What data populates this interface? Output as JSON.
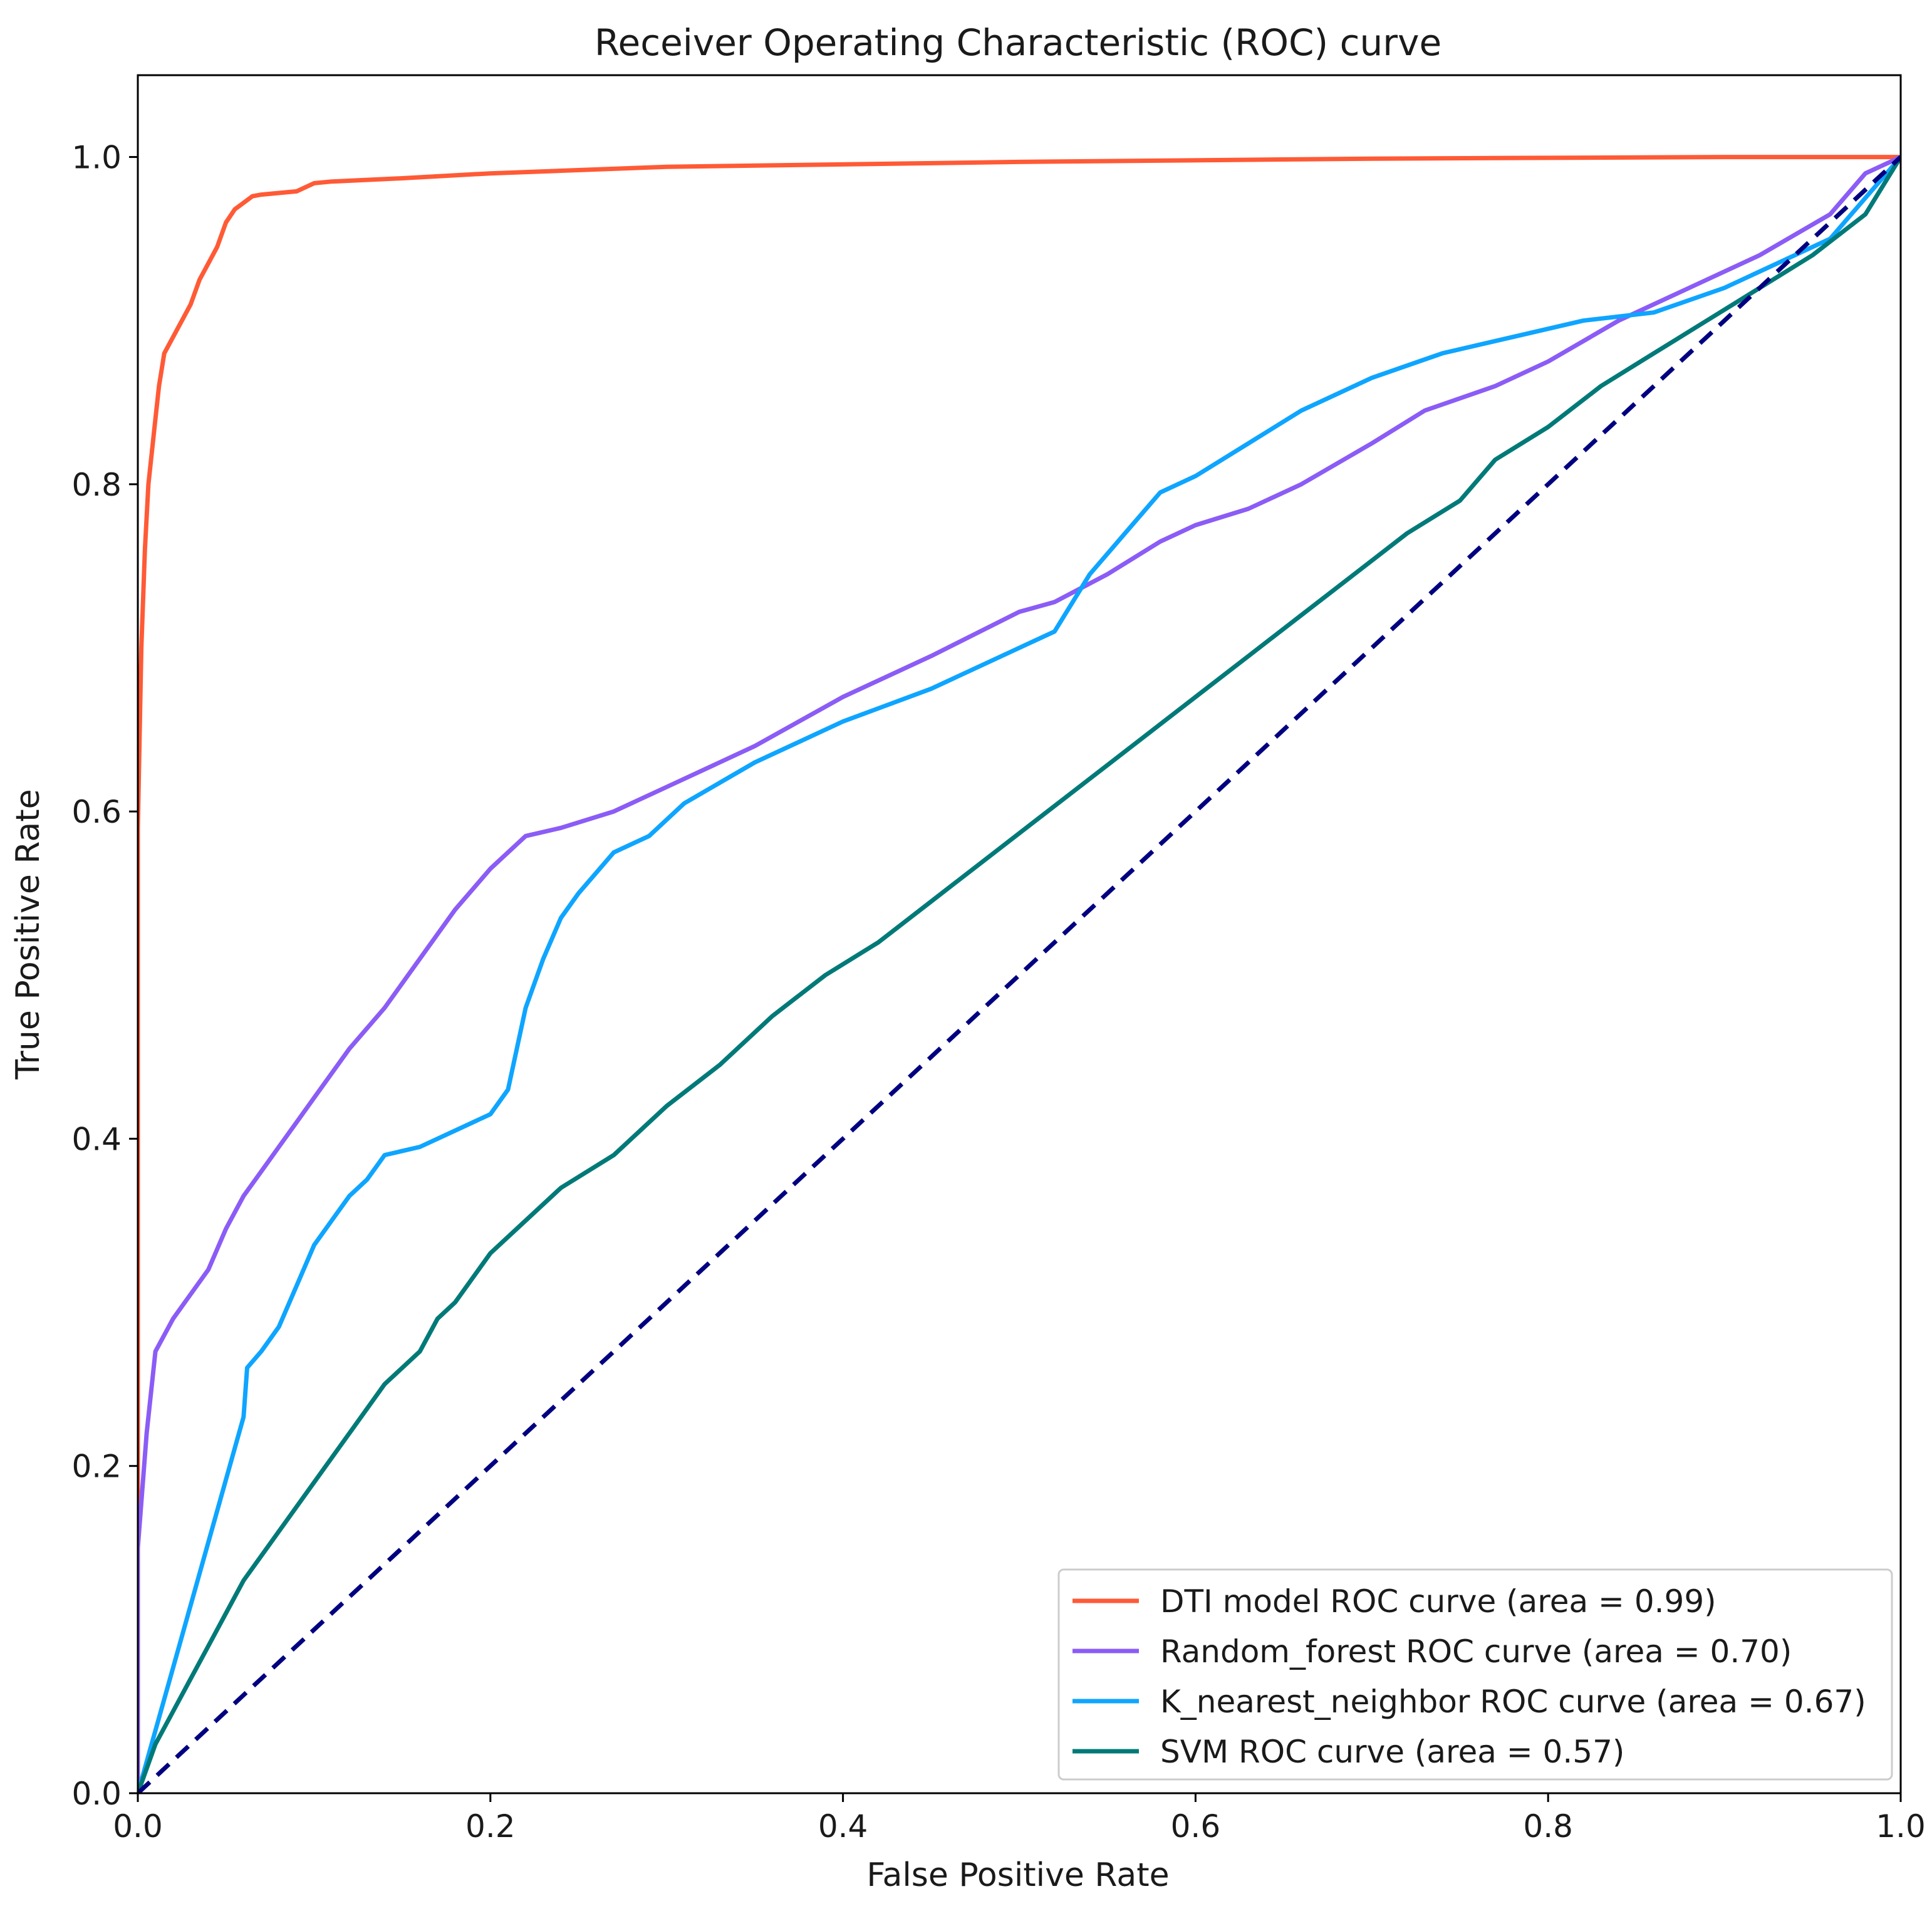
{
  "chart_data": {
    "type": "line",
    "title": "Receiver Operating Characteristic (ROC) curve",
    "xlabel": "False Positive Rate",
    "ylabel": "True Positive Rate",
    "xlim": [
      0.0,
      1.0
    ],
    "ylim": [
      0.0,
      1.05
    ],
    "xticks": [
      "0.0",
      "0.2",
      "0.4",
      "0.6",
      "0.8",
      "1.0"
    ],
    "yticks": [
      "0.0",
      "0.2",
      "0.4",
      "0.6",
      "0.8",
      "1.0"
    ],
    "legend_position": "bottom-right",
    "grid": false,
    "series": [
      {
        "name": "DTI model ROC curve (area = 0.99)",
        "color": "#ff5a36",
        "dash": "solid",
        "x": [
          0.0,
          0.0,
          0.002,
          0.004,
          0.006,
          0.008,
          0.01,
          0.012,
          0.015,
          0.02,
          0.025,
          0.03,
          0.035,
          0.04,
          0.045,
          0.05,
          0.055,
          0.06,
          0.065,
          0.07,
          0.08,
          0.09,
          0.1,
          0.11,
          0.15,
          0.2,
          0.3,
          0.5,
          0.7,
          0.9,
          1.0
        ],
        "y": [
          0.0,
          0.59,
          0.7,
          0.76,
          0.8,
          0.82,
          0.84,
          0.86,
          0.88,
          0.89,
          0.9,
          0.91,
          0.925,
          0.935,
          0.945,
          0.96,
          0.968,
          0.972,
          0.976,
          0.977,
          0.978,
          0.979,
          0.984,
          0.985,
          0.987,
          0.99,
          0.994,
          0.997,
          0.999,
          1.0,
          1.0
        ]
      },
      {
        "name": "Random_forest ROC curve (area = 0.70)",
        "color": "#8b5cf6",
        "dash": "solid",
        "x": [
          0.0,
          0.0,
          0.005,
          0.01,
          0.02,
          0.03,
          0.04,
          0.05,
          0.06,
          0.07,
          0.08,
          0.09,
          0.1,
          0.12,
          0.14,
          0.16,
          0.18,
          0.2,
          0.22,
          0.24,
          0.27,
          0.3,
          0.35,
          0.4,
          0.45,
          0.5,
          0.52,
          0.55,
          0.58,
          0.6,
          0.63,
          0.66,
          0.7,
          0.73,
          0.77,
          0.8,
          0.84,
          0.88,
          0.92,
          0.96,
          0.98,
          1.0
        ],
        "y": [
          0.0,
          0.15,
          0.22,
          0.27,
          0.29,
          0.305,
          0.32,
          0.345,
          0.365,
          0.38,
          0.395,
          0.41,
          0.425,
          0.455,
          0.48,
          0.51,
          0.54,
          0.565,
          0.585,
          0.59,
          0.6,
          0.615,
          0.64,
          0.67,
          0.695,
          0.722,
          0.728,
          0.745,
          0.765,
          0.775,
          0.785,
          0.8,
          0.825,
          0.845,
          0.86,
          0.875,
          0.9,
          0.92,
          0.94,
          0.965,
          0.99,
          1.0
        ]
      },
      {
        "name": "K_nearest_neighbor ROC curve (area = 0.67)",
        "color": "#0ea5ff",
        "dash": "solid",
        "x": [
          0.0,
          0.06,
          0.062,
          0.07,
          0.08,
          0.09,
          0.1,
          0.11,
          0.12,
          0.13,
          0.14,
          0.16,
          0.18,
          0.2,
          0.21,
          0.22,
          0.23,
          0.24,
          0.25,
          0.27,
          0.29,
          0.31,
          0.35,
          0.4,
          0.45,
          0.5,
          0.52,
          0.54,
          0.56,
          0.58,
          0.6,
          0.63,
          0.66,
          0.7,
          0.74,
          0.78,
          0.82,
          0.86,
          0.9,
          0.93,
          0.96,
          1.0
        ],
        "y": [
          0.0,
          0.23,
          0.26,
          0.27,
          0.285,
          0.31,
          0.335,
          0.35,
          0.365,
          0.375,
          0.39,
          0.395,
          0.405,
          0.415,
          0.43,
          0.48,
          0.51,
          0.535,
          0.55,
          0.575,
          0.585,
          0.605,
          0.63,
          0.655,
          0.675,
          0.7,
          0.71,
          0.745,
          0.77,
          0.795,
          0.805,
          0.825,
          0.845,
          0.865,
          0.88,
          0.89,
          0.9,
          0.905,
          0.92,
          0.935,
          0.95,
          1.0
        ]
      },
      {
        "name": "SVM ROC curve (area = 0.57)",
        "color": "#007a78",
        "dash": "solid",
        "x": [
          0.0,
          0.005,
          0.01,
          0.02,
          0.03,
          0.04,
          0.05,
          0.06,
          0.07,
          0.08,
          0.1,
          0.12,
          0.14,
          0.16,
          0.17,
          0.18,
          0.2,
          0.22,
          0.24,
          0.27,
          0.3,
          0.33,
          0.36,
          0.39,
          0.42,
          0.45,
          0.48,
          0.51,
          0.54,
          0.57,
          0.6,
          0.63,
          0.66,
          0.69,
          0.72,
          0.75,
          0.77,
          0.8,
          0.83,
          0.86,
          0.89,
          0.92,
          0.95,
          0.98,
          1.0
        ],
        "y": [
          0.0,
          0.015,
          0.03,
          0.05,
          0.07,
          0.09,
          0.11,
          0.13,
          0.145,
          0.16,
          0.19,
          0.22,
          0.25,
          0.27,
          0.29,
          0.3,
          0.33,
          0.35,
          0.37,
          0.39,
          0.42,
          0.445,
          0.475,
          0.5,
          0.52,
          0.545,
          0.57,
          0.595,
          0.62,
          0.645,
          0.67,
          0.695,
          0.72,
          0.745,
          0.77,
          0.79,
          0.815,
          0.835,
          0.86,
          0.88,
          0.9,
          0.92,
          0.94,
          0.965,
          1.0
        ]
      },
      {
        "name": "",
        "color": "#000080",
        "dash": "dashed",
        "x": [
          0.0,
          1.0
        ],
        "y": [
          0.0,
          1.0
        ]
      }
    ],
    "legend_entries": [
      "DTI model ROC curve (area = 0.99)",
      "Random_forest ROC curve (area = 0.70)",
      "K_nearest_neighbor ROC curve (area = 0.67)",
      "SVM ROC curve (area = 0.57)"
    ]
  }
}
